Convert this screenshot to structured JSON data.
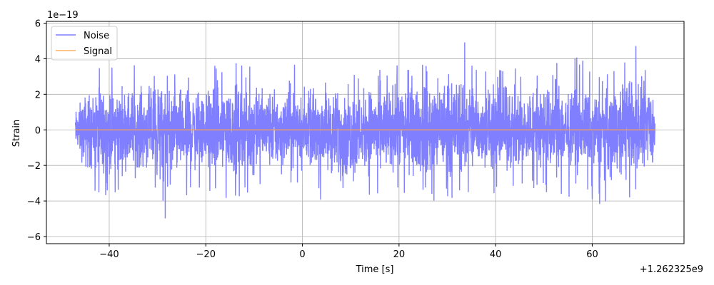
{
  "chart_data": {
    "type": "line",
    "title": "",
    "xlabel": "Time [s]",
    "ylabel": "Strain",
    "x_offset_label": "+1.262325e9",
    "y_scale_label": "1e−19",
    "xlim": [
      -53,
      79
    ],
    "ylim": [
      -6.4,
      6.1
    ],
    "data_x_range": [
      -47,
      73
    ],
    "x_ticks": [
      -40,
      -20,
      0,
      20,
      40,
      60
    ],
    "x_tick_labels": [
      "−40",
      "−20",
      "0",
      "20",
      "40",
      "60"
    ],
    "y_ticks": [
      -6,
      -4,
      -2,
      0,
      2,
      4,
      6
    ],
    "y_tick_labels": [
      "−6",
      "−4",
      "−2",
      "0",
      "2",
      "4",
      "6"
    ],
    "grid": true,
    "legend_position": "top-left",
    "series": [
      {
        "name": "Noise",
        "color": "#7f7fff",
        "style": "noise",
        "amplitude_envelope": {
          "x": [
            -47,
            -45,
            -41,
            -36,
            -31,
            -27.4,
            -27,
            -21,
            -15,
            -9,
            -4,
            -1,
            0,
            3,
            8,
            12,
            17,
            22,
            27,
            32.7,
            36,
            41,
            46,
            53,
            58,
            61.6,
            65,
            69.2,
            73
          ],
          "max": [
            1.7,
            3.2,
            3.6,
            3.8,
            3.7,
            3.7,
            3.6,
            3.5,
            4.0,
            3.9,
            3.5,
            4.8,
            2.5,
            4.1,
            3.3,
            3.5,
            4.2,
            3.7,
            4.0,
            5.5,
            3.9,
            3.7,
            3.3,
            4.4,
            4.0,
            3.0,
            4.1,
            4.8,
            2.9
          ],
          "min": [
            -1.7,
            -3.5,
            -4.3,
            -3.3,
            -3.6,
            -5.8,
            -4.9,
            -3.4,
            -4.3,
            -3.4,
            -3.8,
            -3.5,
            -2.5,
            -3.8,
            -4.9,
            -3.9,
            -3.5,
            -3.8,
            -4.0,
            -3.9,
            -4.1,
            -3.6,
            -3.4,
            -3.9,
            -3.6,
            -4.3,
            -4.5,
            -3.9,
            -2.9
          ]
        }
      },
      {
        "name": "Signal",
        "color": "#ffa040",
        "x": [
          -47,
          73
        ],
        "values": [
          0,
          0
        ]
      }
    ]
  }
}
